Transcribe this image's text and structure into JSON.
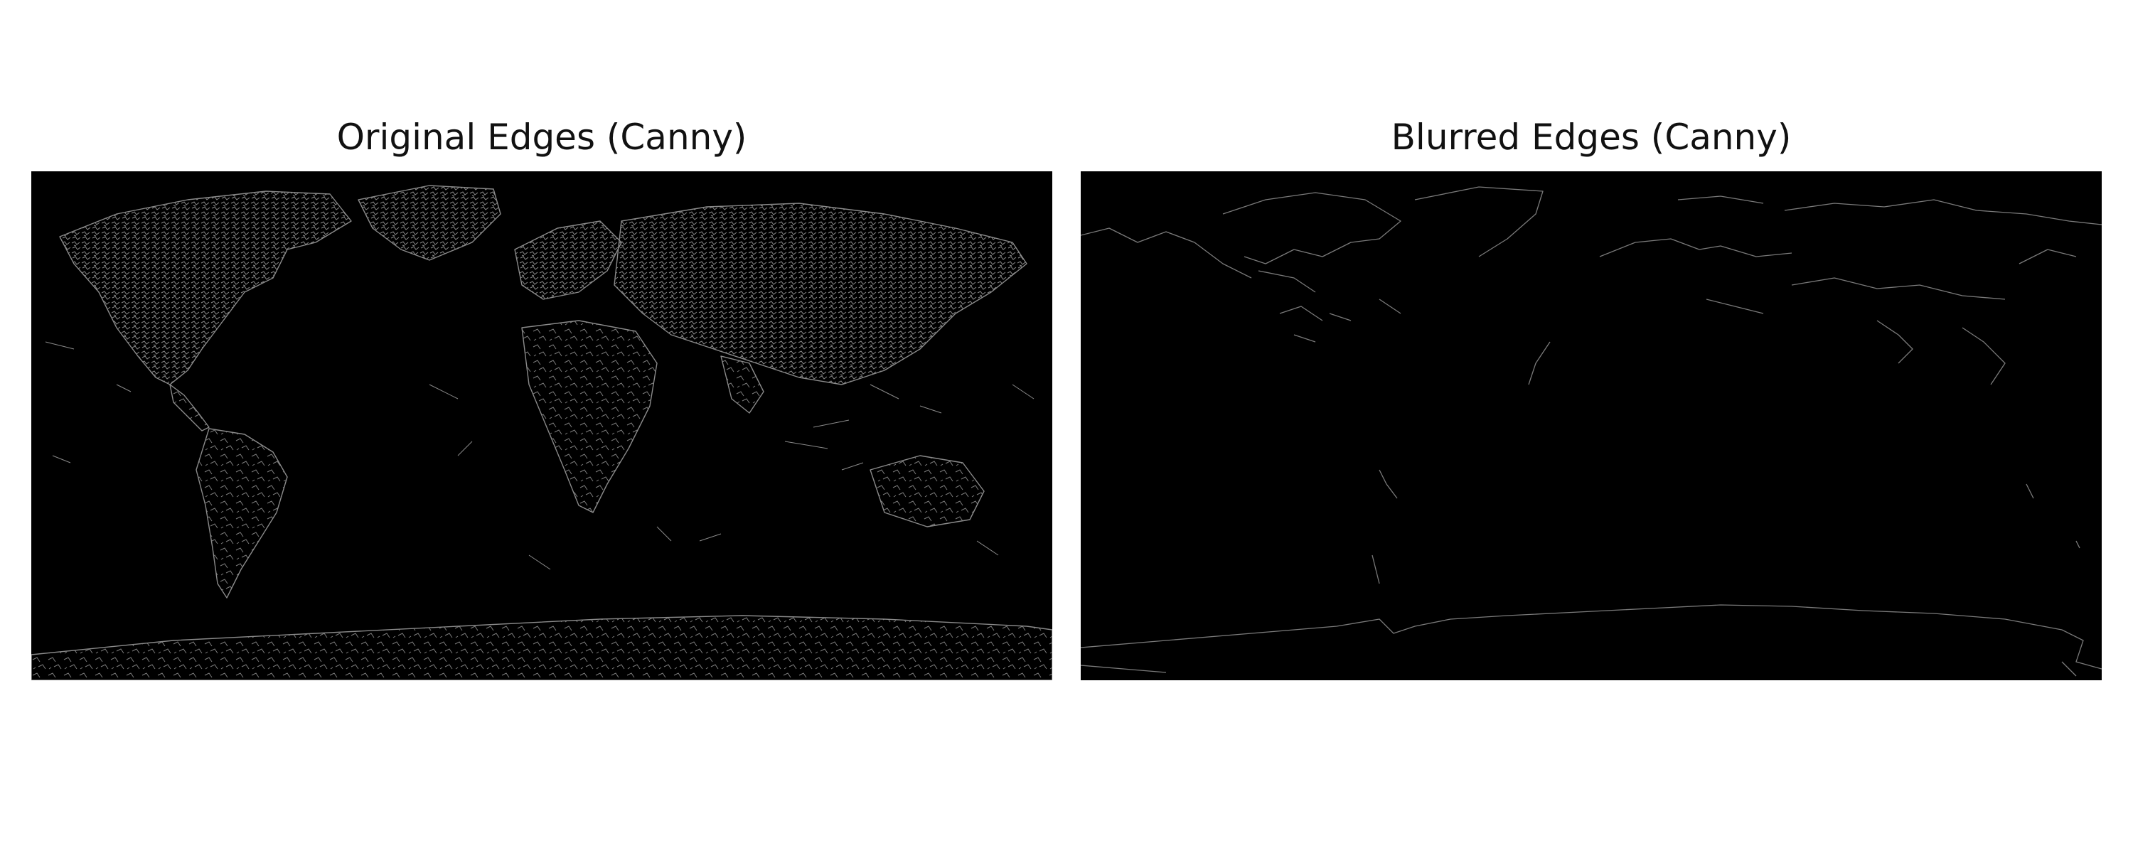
{
  "figure": {
    "panels": [
      {
        "title": "Original Edges (Canny)",
        "image": "world-map-canny-edges-original",
        "edge_color": "#8a8a8a",
        "background_color": "#000000",
        "edge_density": "dense"
      },
      {
        "title": "Blurred Edges (Canny)",
        "image": "world-map-canny-edges-blurred",
        "edge_color": "#7a7a7a",
        "background_color": "#000000",
        "edge_density": "sparse"
      }
    ]
  }
}
